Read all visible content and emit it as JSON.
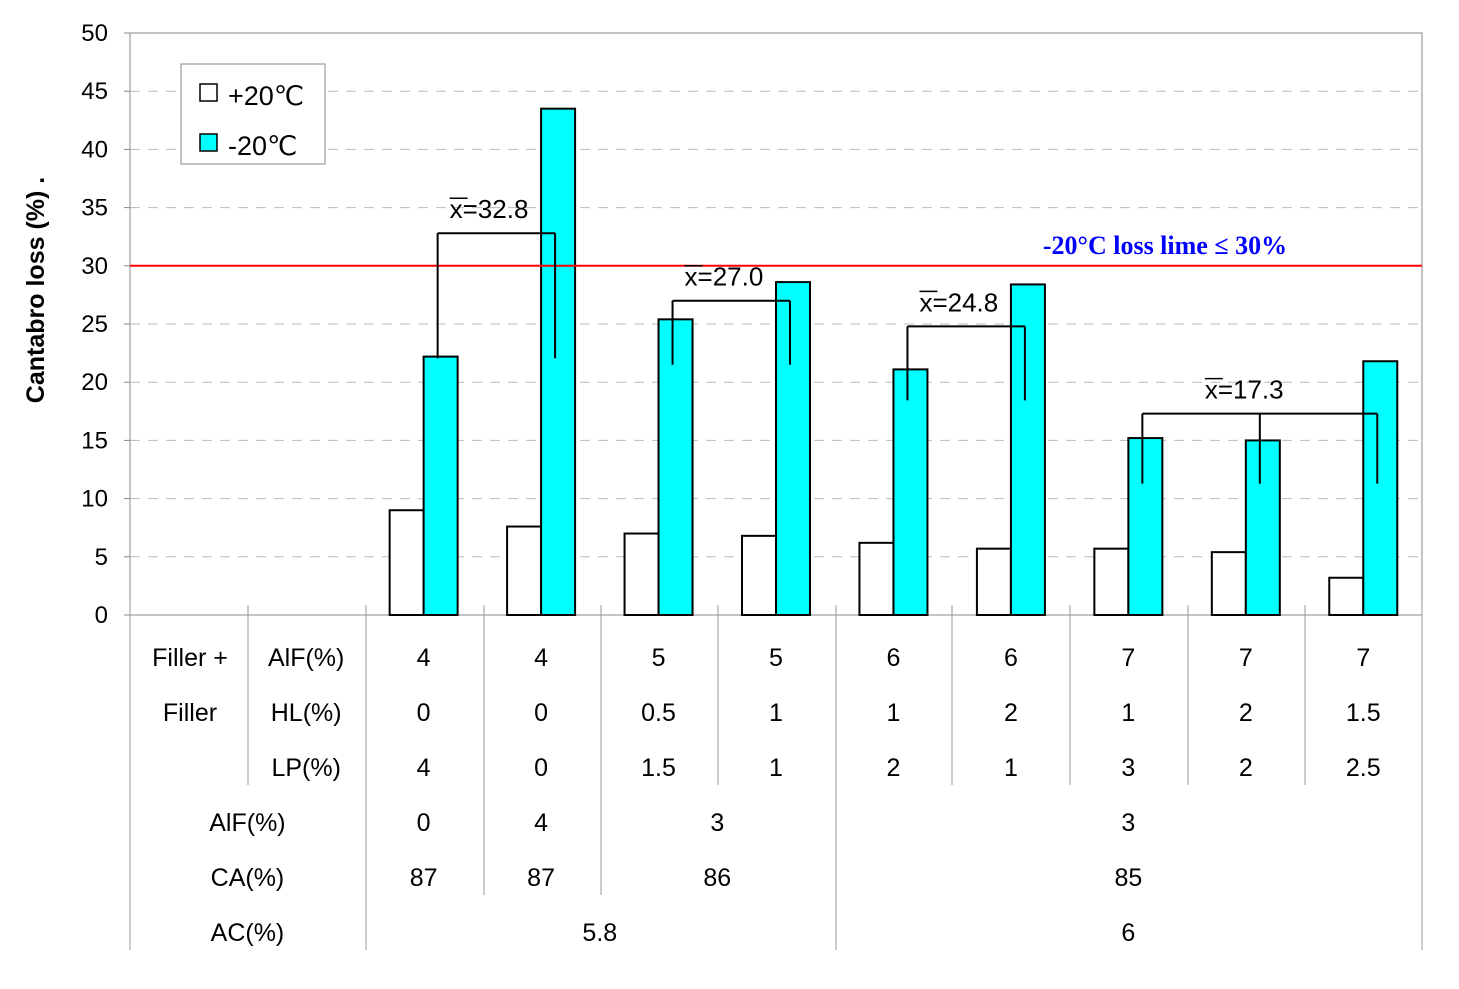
{
  "chart_data": {
    "type": "bar",
    "ylabel": "Cantabro loss (%) .",
    "ylim": [
      0,
      50
    ],
    "yticks": [
      0,
      5,
      10,
      15,
      20,
      25,
      30,
      35,
      40,
      45,
      50
    ],
    "grid": true,
    "legend_position": "top-left",
    "series": [
      {
        "name": "+20℃",
        "color": "#ffffff",
        "values": [
          9.0,
          7.6,
          7.0,
          6.8,
          6.2,
          5.7,
          5.7,
          5.4,
          3.2
        ]
      },
      {
        "name": "-20℃",
        "color": "#00ffff",
        "values": [
          22.2,
          43.5,
          25.4,
          28.6,
          21.1,
          28.4,
          15.2,
          15.0,
          21.8
        ]
      }
    ],
    "reference_line": {
      "value": 30,
      "color": "#ff0000",
      "label": "-20°C loss lime ≤ 30%",
      "label_color": "#0000ff"
    },
    "mean_annotations": [
      {
        "label": "x=32.8",
        "value": 32.8,
        "bars": [
          0,
          1
        ]
      },
      {
        "label": "x=27.0",
        "value": 27.0,
        "bars": [
          2,
          3
        ]
      },
      {
        "label": "x=24.8",
        "value": 24.8,
        "bars": [
          4,
          5
        ]
      },
      {
        "label": "x=17.3",
        "value": 17.3,
        "bars": [
          6,
          7,
          8
        ]
      }
    ],
    "table": {
      "filler_label_1": "Filler +",
      "filler_label_2": "Filler",
      "rows": [
        {
          "label": "AlF(%)",
          "cells": [
            {
              "text": "4",
              "span": 1
            },
            {
              "text": "4",
              "span": 1
            },
            {
              "text": "5",
              "span": 1
            },
            {
              "text": "5",
              "span": 1
            },
            {
              "text": "6",
              "span": 1
            },
            {
              "text": "6",
              "span": 1
            },
            {
              "text": "7",
              "span": 1
            },
            {
              "text": "7",
              "span": 1
            },
            {
              "text": "7",
              "span": 1
            }
          ]
        },
        {
          "label": "HL(%)",
          "cells": [
            {
              "text": "0",
              "span": 1
            },
            {
              "text": "0",
              "span": 1
            },
            {
              "text": "0.5",
              "span": 1
            },
            {
              "text": "1",
              "span": 1
            },
            {
              "text": "1",
              "span": 1
            },
            {
              "text": "2",
              "span": 1
            },
            {
              "text": "1",
              "span": 1
            },
            {
              "text": "2",
              "span": 1
            },
            {
              "text": "1.5",
              "span": 1
            }
          ]
        },
        {
          "label": "LP(%)",
          "cells": [
            {
              "text": "4",
              "span": 1
            },
            {
              "text": "0",
              "span": 1
            },
            {
              "text": "1.5",
              "span": 1
            },
            {
              "text": "1",
              "span": 1
            },
            {
              "text": "2",
              "span": 1
            },
            {
              "text": "1",
              "span": 1
            },
            {
              "text": "3",
              "span": 1
            },
            {
              "text": "2",
              "span": 1
            },
            {
              "text": "2.5",
              "span": 1
            }
          ]
        },
        {
          "label": "AlF(%)",
          "cells": [
            {
              "text": "0",
              "span": 1
            },
            {
              "text": "4",
              "span": 1
            },
            {
              "text": "3",
              "span": 2
            },
            {
              "text": "3",
              "span": 5
            }
          ]
        },
        {
          "label": "CA(%)",
          "cells": [
            {
              "text": "87",
              "span": 1
            },
            {
              "text": "87",
              "span": 1
            },
            {
              "text": "86",
              "span": 2
            },
            {
              "text": "85",
              "span": 5
            }
          ]
        },
        {
          "label": "AC(%)",
          "cells": [
            {
              "text": "5.8",
              "span": 4
            },
            {
              "text": "6",
              "span": 5
            }
          ]
        }
      ]
    }
  }
}
